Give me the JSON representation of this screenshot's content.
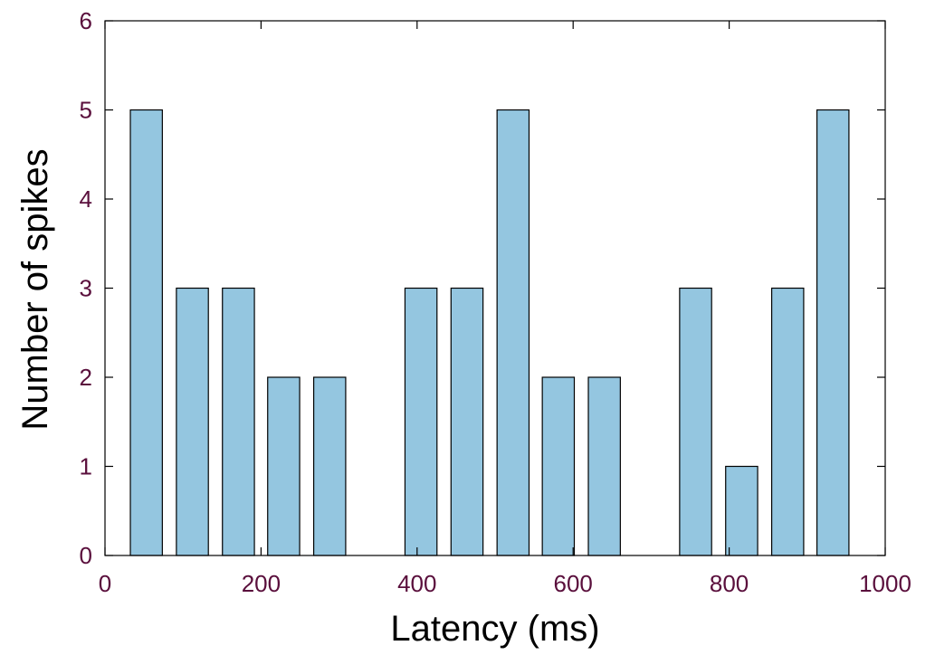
{
  "chart_data": {
    "type": "bar",
    "title": "",
    "xlabel": "Latency (ms)",
    "ylabel": "Number of spikes",
    "xlim": [
      0,
      1000
    ],
    "ylim": [
      0,
      6
    ],
    "xticks": [
      "0",
      "200",
      "400",
      "600",
      "800",
      "1000"
    ],
    "yticks": [
      "0",
      "1",
      "2",
      "3",
      "4",
      "5",
      "6"
    ],
    "bin_width": 50,
    "bins": [
      {
        "center": 53,
        "value": 5
      },
      {
        "center": 112,
        "value": 3
      },
      {
        "center": 171,
        "value": 3
      },
      {
        "center": 229,
        "value": 2
      },
      {
        "center": 288,
        "value": 2
      },
      {
        "center": 405,
        "value": 3
      },
      {
        "center": 464,
        "value": 3
      },
      {
        "center": 523,
        "value": 5
      },
      {
        "center": 581,
        "value": 2
      },
      {
        "center": 640,
        "value": 2
      },
      {
        "center": 757,
        "value": 3
      },
      {
        "center": 816,
        "value": 1
      },
      {
        "center": 875,
        "value": 3
      },
      {
        "center": 933,
        "value": 5
      }
    ],
    "bar_color": "#94c6e0",
    "tick_label_color": "#5a0f3c",
    "grid": false,
    "legend": "none"
  }
}
